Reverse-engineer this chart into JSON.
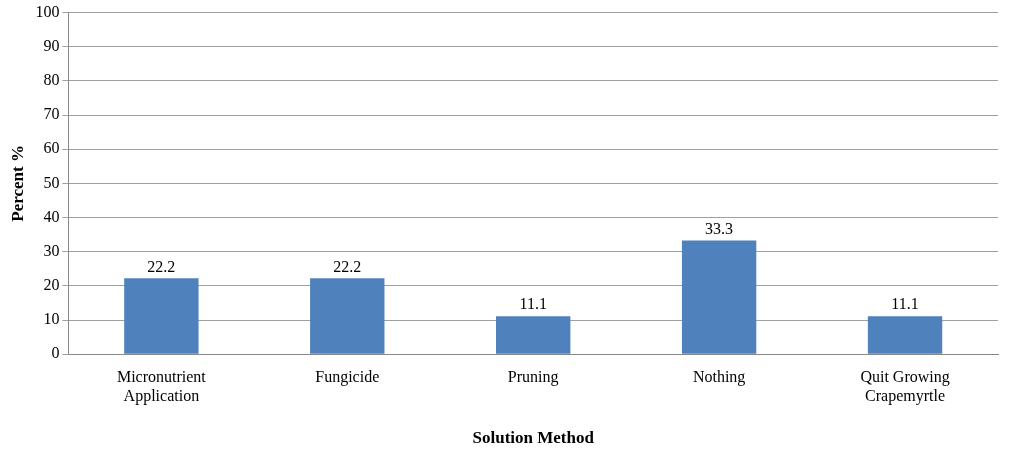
{
  "chart_data": {
    "type": "bar",
    "xlabel": "Solution Method",
    "ylabel": "Percent %",
    "categories": [
      "Micronutrient Application",
      "Fungicide",
      "Pruning",
      "Nothing",
      "Quit Growing Crapemyrtle"
    ],
    "values": [
      22.2,
      22.2,
      11.1,
      33.3,
      11.1
    ],
    "color": "#4f81bd",
    "ylim": [
      0,
      100
    ],
    "yticks": [
      0,
      10,
      20,
      30,
      40,
      50,
      60,
      70,
      80,
      90,
      100
    ],
    "grid": "y",
    "data_labels": true
  }
}
